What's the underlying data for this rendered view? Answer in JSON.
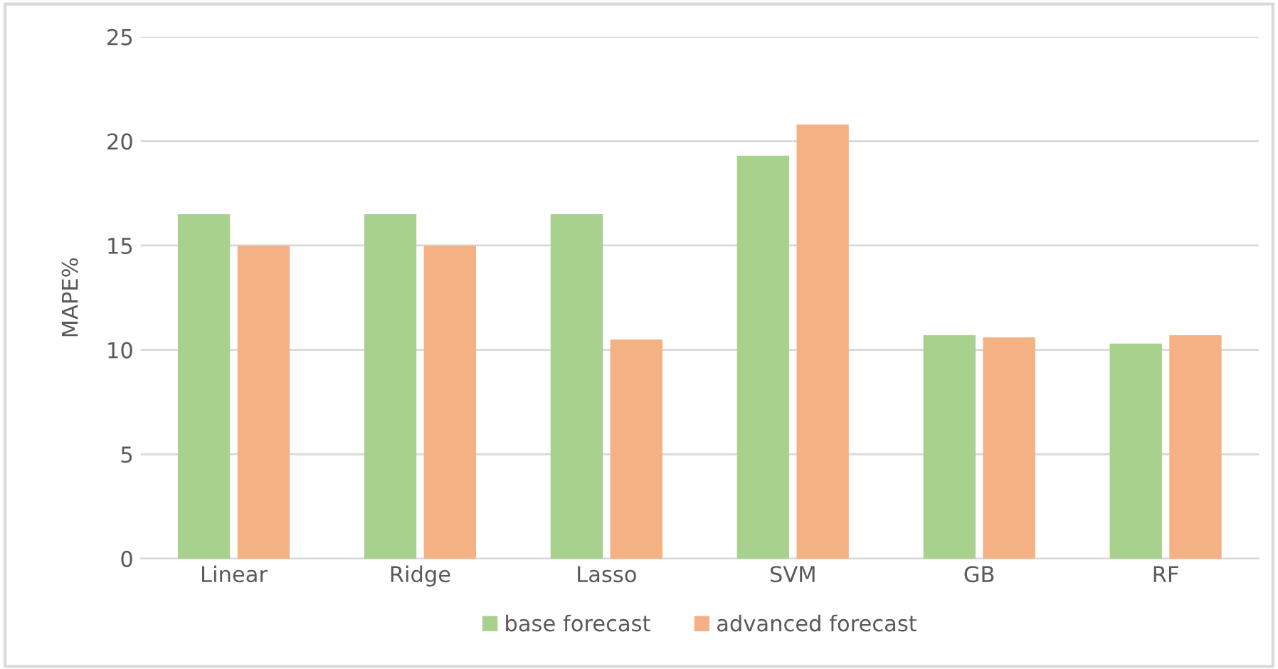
{
  "chart_data": {
    "type": "bar",
    "ylabel": "MAPE%",
    "categories": [
      "Linear",
      "Ridge",
      "Lasso",
      "SVM",
      "GB",
      "RF"
    ],
    "series": [
      {
        "name": "base forecast",
        "color": "#a9d18e",
        "values": [
          16.5,
          16.5,
          16.5,
          19.3,
          10.7,
          10.3
        ]
      },
      {
        "name": "advanced forecast",
        "color": "#f4b183",
        "values": [
          15.0,
          15.0,
          10.5,
          20.8,
          10.6,
          10.7
        ]
      }
    ],
    "ylim": [
      0,
      25
    ],
    "yticks": [
      0,
      5,
      10,
      15,
      20,
      25
    ],
    "grid": "y",
    "legend": "bottom"
  }
}
